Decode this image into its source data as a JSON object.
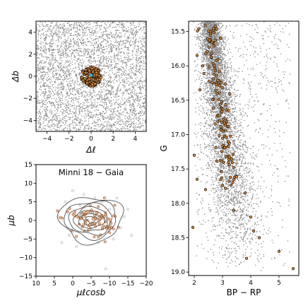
{
  "chart_data": [
    {
      "id": "sky",
      "type": "scatter",
      "xlabel": "Δℓ",
      "ylabel": "Δb",
      "xlim": [
        -5,
        5
      ],
      "ylim": [
        -5,
        5
      ],
      "xticks": [
        -4,
        -2,
        0,
        2,
        4
      ],
      "yticks": [
        -4,
        -2,
        0,
        2,
        4
      ],
      "background": {
        "kind": "uniform",
        "count": 3600,
        "color": "#8c8c8c"
      },
      "members": {
        "center": [
          0,
          0
        ],
        "radius": 0.9,
        "count": 150,
        "fill": "#cd853f",
        "edge": "#000000"
      },
      "center_marker": {
        "x": 0,
        "y": 0.1,
        "color": "#3fb0e8"
      },
      "grid": false
    },
    {
      "id": "pm",
      "type": "scatter",
      "title": "Minni 18  −  Gaia",
      "xlabel": "μℓcosb",
      "ylabel": "μb",
      "xlim": [
        10,
        -20
      ],
      "ylim": [
        -15,
        15
      ],
      "xticks": [
        10,
        5,
        0,
        -5,
        -10,
        -15,
        -20
      ],
      "yticks": [
        -15,
        -10,
        -5,
        0,
        5,
        10,
        15
      ],
      "center": [
        -5,
        0
      ],
      "contours": {
        "levels": 7,
        "color": "#555555"
      },
      "members": {
        "count": 90,
        "fill": "#f0c8a0",
        "edge": "#a0522d"
      },
      "field_points": {
        "count": 20,
        "color": "#c0c0c0"
      },
      "grid": false
    },
    {
      "id": "cmd",
      "type": "scatter",
      "xlabel": "BP − RP",
      "ylabel": "G",
      "xlim": [
        1.8,
        5.7
      ],
      "ylim": [
        19.05,
        15.35
      ],
      "xticks": [
        2,
        3,
        4,
        5
      ],
      "yticks": [
        15.5,
        16.0,
        16.5,
        17.0,
        17.5,
        18.0,
        18.5,
        19.0
      ],
      "background": {
        "kind": "red-clump-sequence",
        "count": 5200,
        "color": "#8c8c8c"
      },
      "members": {
        "count": 150,
        "fill": "#cd853f",
        "edge": "#000000"
      },
      "grid": false
    }
  ]
}
